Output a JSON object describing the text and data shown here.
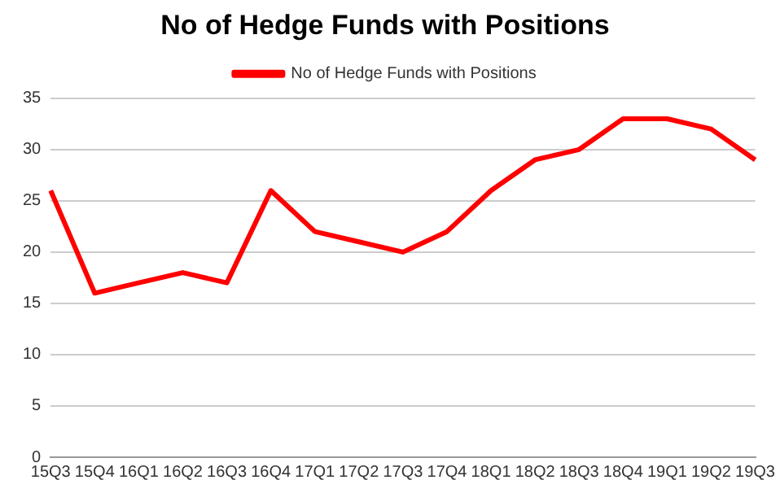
{
  "chart_data": {
    "type": "line",
    "title": "No of Hedge Funds with Positions",
    "categories": [
      "15Q3",
      "15Q4",
      "16Q1",
      "16Q2",
      "16Q3",
      "16Q4",
      "17Q1",
      "17Q2",
      "17Q3",
      "17Q4",
      "18Q1",
      "18Q2",
      "18Q3",
      "18Q4",
      "19Q1",
      "19Q2",
      "19Q3"
    ],
    "series": [
      {
        "name": "No of Hedge Funds with Positions",
        "color": "#ff0000",
        "values": [
          26,
          16,
          17,
          18,
          17,
          26,
          22,
          21,
          20,
          22,
          26,
          29,
          30,
          33,
          33,
          32,
          29
        ]
      }
    ],
    "ylim": [
      0,
      35
    ],
    "yticks": [
      0,
      5,
      10,
      15,
      20,
      25,
      30,
      35
    ],
    "grid": "y",
    "legend": "top",
    "marker": "none",
    "line_style": "solid"
  }
}
